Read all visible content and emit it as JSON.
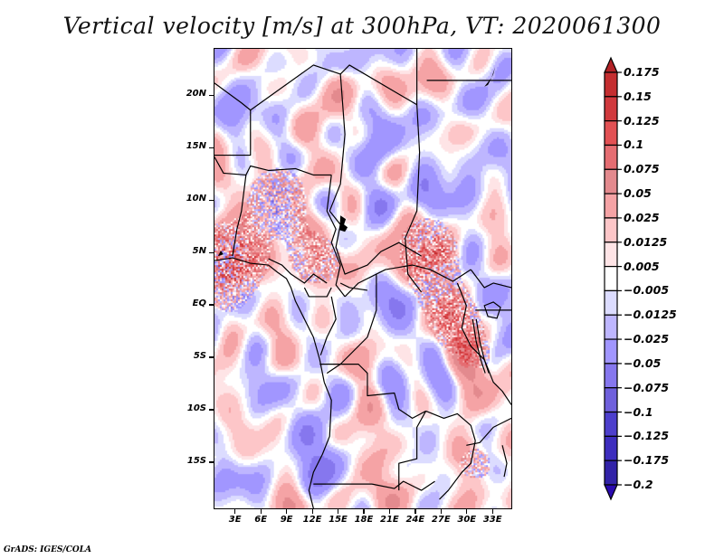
{
  "chart_data": {
    "type": "heatmap",
    "title": "Vertical velocity [m/s] at 300hPa, VT: 2020061300",
    "variable": "Vertical velocity",
    "units": "m/s",
    "level": "300hPa",
    "valid_time": "2020061300",
    "xlabel": "",
    "ylabel": "",
    "x_tick_labels": [
      "3E",
      "6E",
      "9E",
      "12E",
      "15E",
      "18E",
      "21E",
      "24E",
      "27E",
      "30E",
      "33E"
    ],
    "x_tick_values": [
      3,
      6,
      9,
      12,
      15,
      18,
      21,
      24,
      27,
      30,
      33
    ],
    "y_tick_labels": [
      "20N",
      "15N",
      "10N",
      "5N",
      "EQ",
      "5S",
      "10S",
      "15S"
    ],
    "y_tick_values": [
      20,
      15,
      10,
      5,
      0,
      -5,
      -10,
      -15
    ],
    "xlim": [
      0.5,
      35.3
    ],
    "ylim": [
      -19.5,
      24.5
    ],
    "grid": false,
    "colorbar": {
      "position": "right",
      "orientation": "vertical",
      "extend": "both",
      "levels": [
        0.175,
        0.15,
        0.125,
        0.1,
        0.075,
        0.05,
        0.025,
        0.0125,
        0.005,
        -0.005,
        -0.0125,
        -0.025,
        -0.05,
        -0.075,
        -0.1,
        -0.125,
        -0.175,
        -0.2
      ],
      "labels": [
        "0.175",
        "0.15",
        "0.125",
        "0.1",
        "0.075",
        "0.05",
        "0.025",
        "0.0125",
        "0.005",
        "−0.005",
        "−0.0125",
        "−0.025",
        "−0.05",
        "−0.075",
        "−0.1",
        "−0.125",
        "−0.175",
        "−0.2"
      ],
      "colors_top_to_bottom": [
        "#b22226",
        "#c42e30",
        "#d0393d",
        "#e25154",
        "#e56d72",
        "#e38a8e",
        "#f5a3a5",
        "#fdc6c8",
        "#fee4e6",
        "#ffffff",
        "#dcdcff",
        "#beb6ff",
        "#a196ff",
        "#8677ee",
        "#6f60dc",
        "#4d3fcc",
        "#3d2dbe",
        "#3223a8",
        "#2a0ab0"
      ]
    },
    "features": {
      "country_borders": true,
      "coastlines": true,
      "lakes": true
    },
    "description": "Alternating streaks of weak ascent (red) and descent (blue) across central Africa; strongest ascent (>0.1 m/s) over Gulf of Guinea near 3-5N, southern Nigeria, CAR/South Sudan border and Lake Victoria region."
  },
  "footer": {
    "credit": "GrADS: IGES/COLA"
  }
}
